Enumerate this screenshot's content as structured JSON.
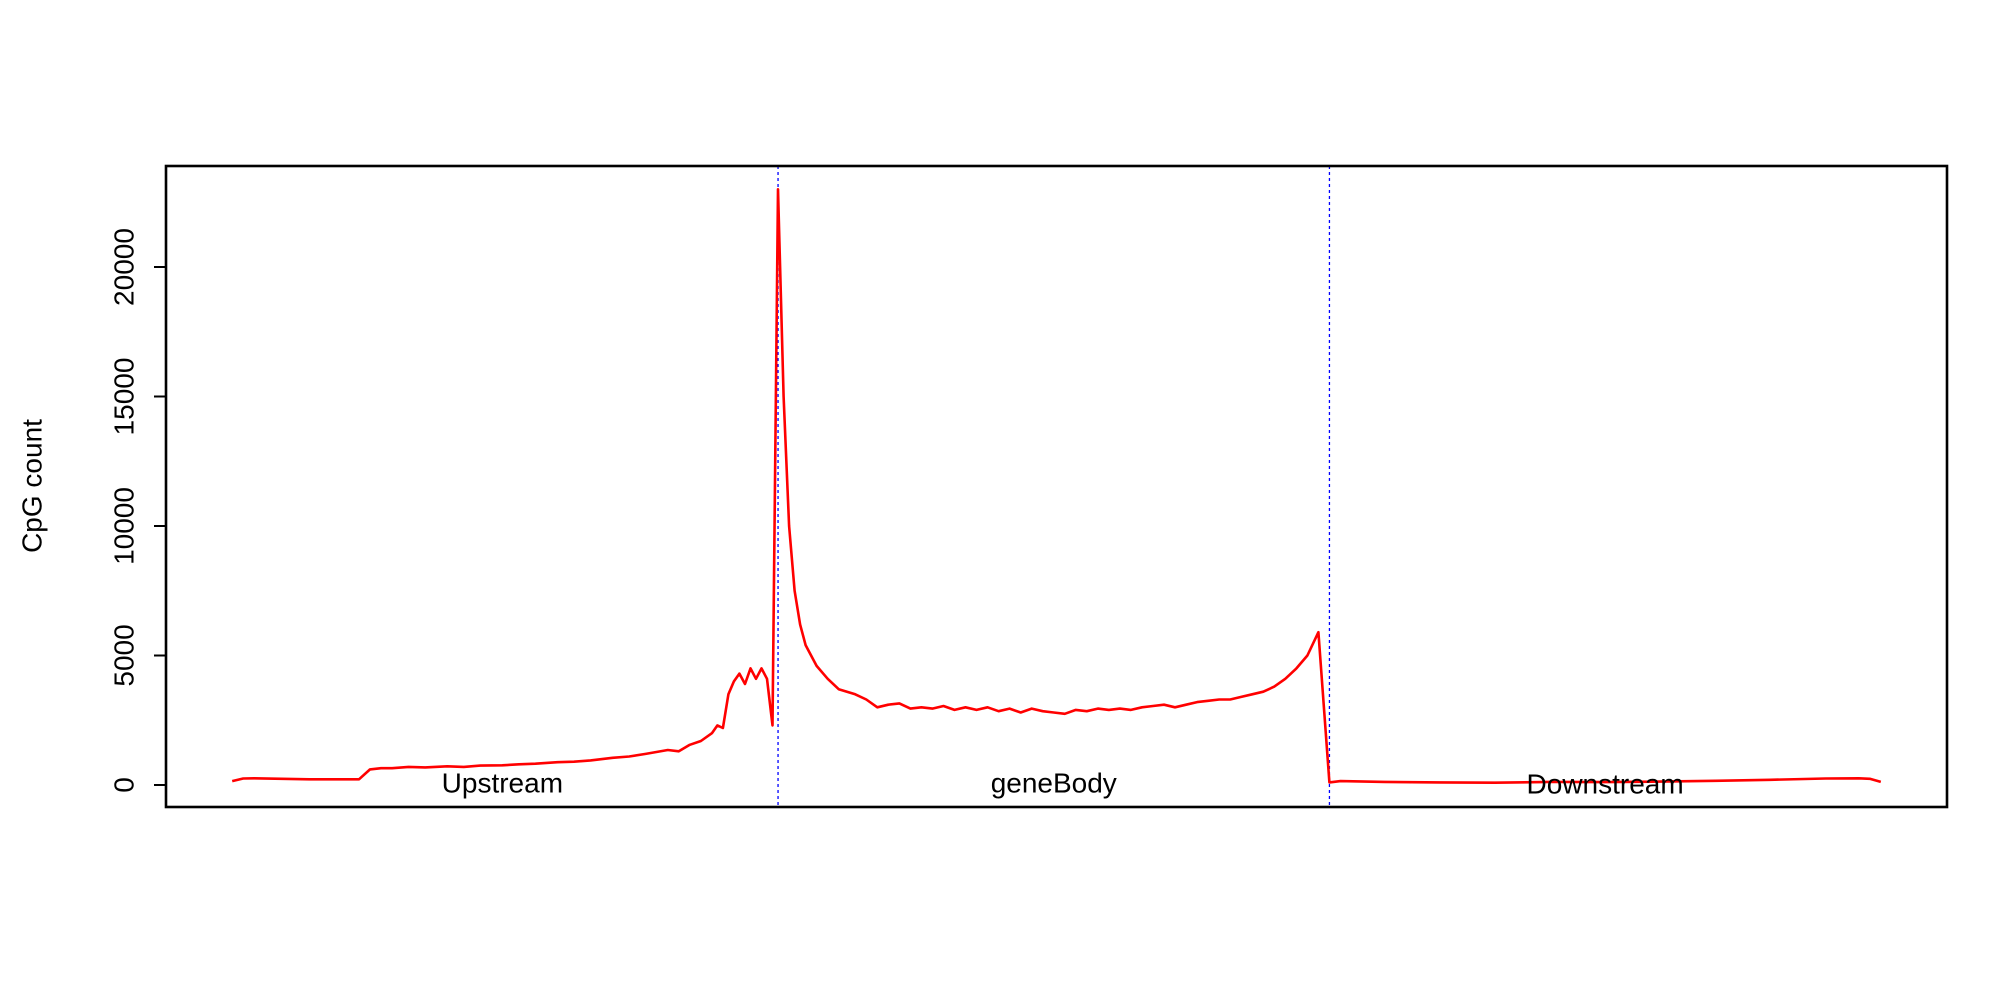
{
  "chart_data": {
    "type": "line",
    "y_label": "CpG count",
    "xlim": [
      -11,
      312
    ],
    "ylim": [
      -850,
      23900
    ],
    "yticks": [
      0,
      5000,
      10000,
      15000,
      20000
    ],
    "vlines": [
      100,
      200
    ],
    "vline_color": "#0000ff",
    "annotations": [
      {
        "text": "Upstream",
        "x": 50,
        "y": 0
      },
      {
        "text": "geneBody",
        "x": 150,
        "y": 0
      },
      {
        "text": "Downstream",
        "x": 250,
        "y": -50
      }
    ],
    "series": [
      {
        "name": "CpG count",
        "color": "#ff0000",
        "x": [
          1,
          3,
          5,
          10,
          15,
          20,
          24,
          26,
          28,
          30,
          33,
          36,
          40,
          43,
          46,
          50,
          53,
          56,
          60,
          63,
          66,
          70,
          73,
          76,
          80,
          82,
          84,
          86,
          88,
          89,
          90,
          91,
          92,
          93,
          94,
          95,
          96,
          97,
          98,
          99,
          100,
          101,
          102,
          103,
          104,
          105,
          107,
          109,
          111,
          114,
          116,
          118,
          120,
          122,
          124,
          126,
          128,
          130,
          132,
          134,
          136,
          138,
          140,
          142,
          144,
          146,
          148,
          150,
          152,
          154,
          156,
          158,
          160,
          162,
          164,
          166,
          168,
          170,
          172,
          174,
          176,
          178,
          180,
          182,
          184,
          186,
          188,
          190,
          192,
          194,
          196,
          198,
          200,
          202,
          210,
          220,
          230,
          240,
          250,
          260,
          270,
          280,
          290,
          296,
          298,
          300
        ],
        "values": [
          150,
          250,
          260,
          240,
          220,
          220,
          220,
          600,
          650,
          650,
          700,
          680,
          720,
          700,
          750,
          760,
          800,
          820,
          880,
          900,
          950,
          1050,
          1100,
          1200,
          1350,
          1300,
          1550,
          1700,
          2000,
          2300,
          2200,
          3500,
          4000,
          4300,
          3900,
          4500,
          4100,
          4500,
          4100,
          2300,
          23000,
          15000,
          10000,
          7500,
          6200,
          5400,
          4600,
          4100,
          3700,
          3500,
          3300,
          3000,
          3100,
          3150,
          2950,
          3000,
          2950,
          3050,
          2900,
          3000,
          2900,
          3000,
          2850,
          2950,
          2800,
          2950,
          2850,
          2800,
          2750,
          2900,
          2850,
          2950,
          2900,
          2950,
          2900,
          3000,
          3050,
          3100,
          3000,
          3100,
          3200,
          3250,
          3300,
          3300,
          3400,
          3500,
          3600,
          3800,
          4100,
          4500,
          5000,
          5900,
          100,
          150,
          120,
          100,
          90,
          120,
          110,
          130,
          160,
          200,
          250,
          260,
          240,
          120
        ]
      }
    ]
  }
}
